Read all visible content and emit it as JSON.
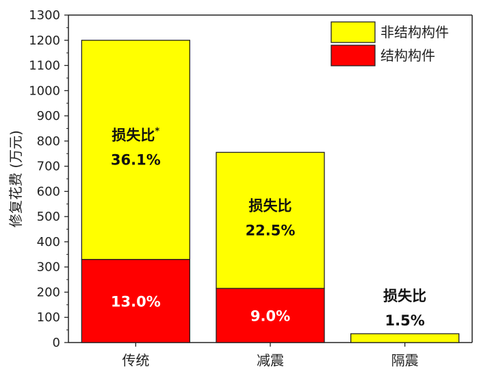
{
  "chart_data": {
    "type": "bar",
    "stacked": true,
    "categories": [
      "传统",
      "减震",
      "隔震"
    ],
    "series": [
      {
        "name": "结构构件",
        "values": [
          330,
          215,
          0
        ],
        "color": "#ff0000"
      },
      {
        "name": "非结构构件",
        "values": [
          870,
          540,
          35
        ],
        "color": "#ffff00"
      }
    ],
    "ylabel": "修复花费 (万元)",
    "xlabel": "",
    "ylim": [
      0,
      1300
    ],
    "yticks": [
      0,
      100,
      200,
      300,
      400,
      500,
      600,
      700,
      800,
      900,
      1000,
      1100,
      1200,
      1300
    ],
    "legend_position": "top-right",
    "legend_order": [
      "非结构构件",
      "结构构件"
    ],
    "annotations": {
      "loss_ratio_label": "损失比",
      "footnote_mark": "*",
      "total_ratios": [
        "36.1%",
        "22.5%",
        "1.5%"
      ],
      "structural_ratios": [
        "13.0%",
        "9.0%",
        ""
      ]
    }
  }
}
